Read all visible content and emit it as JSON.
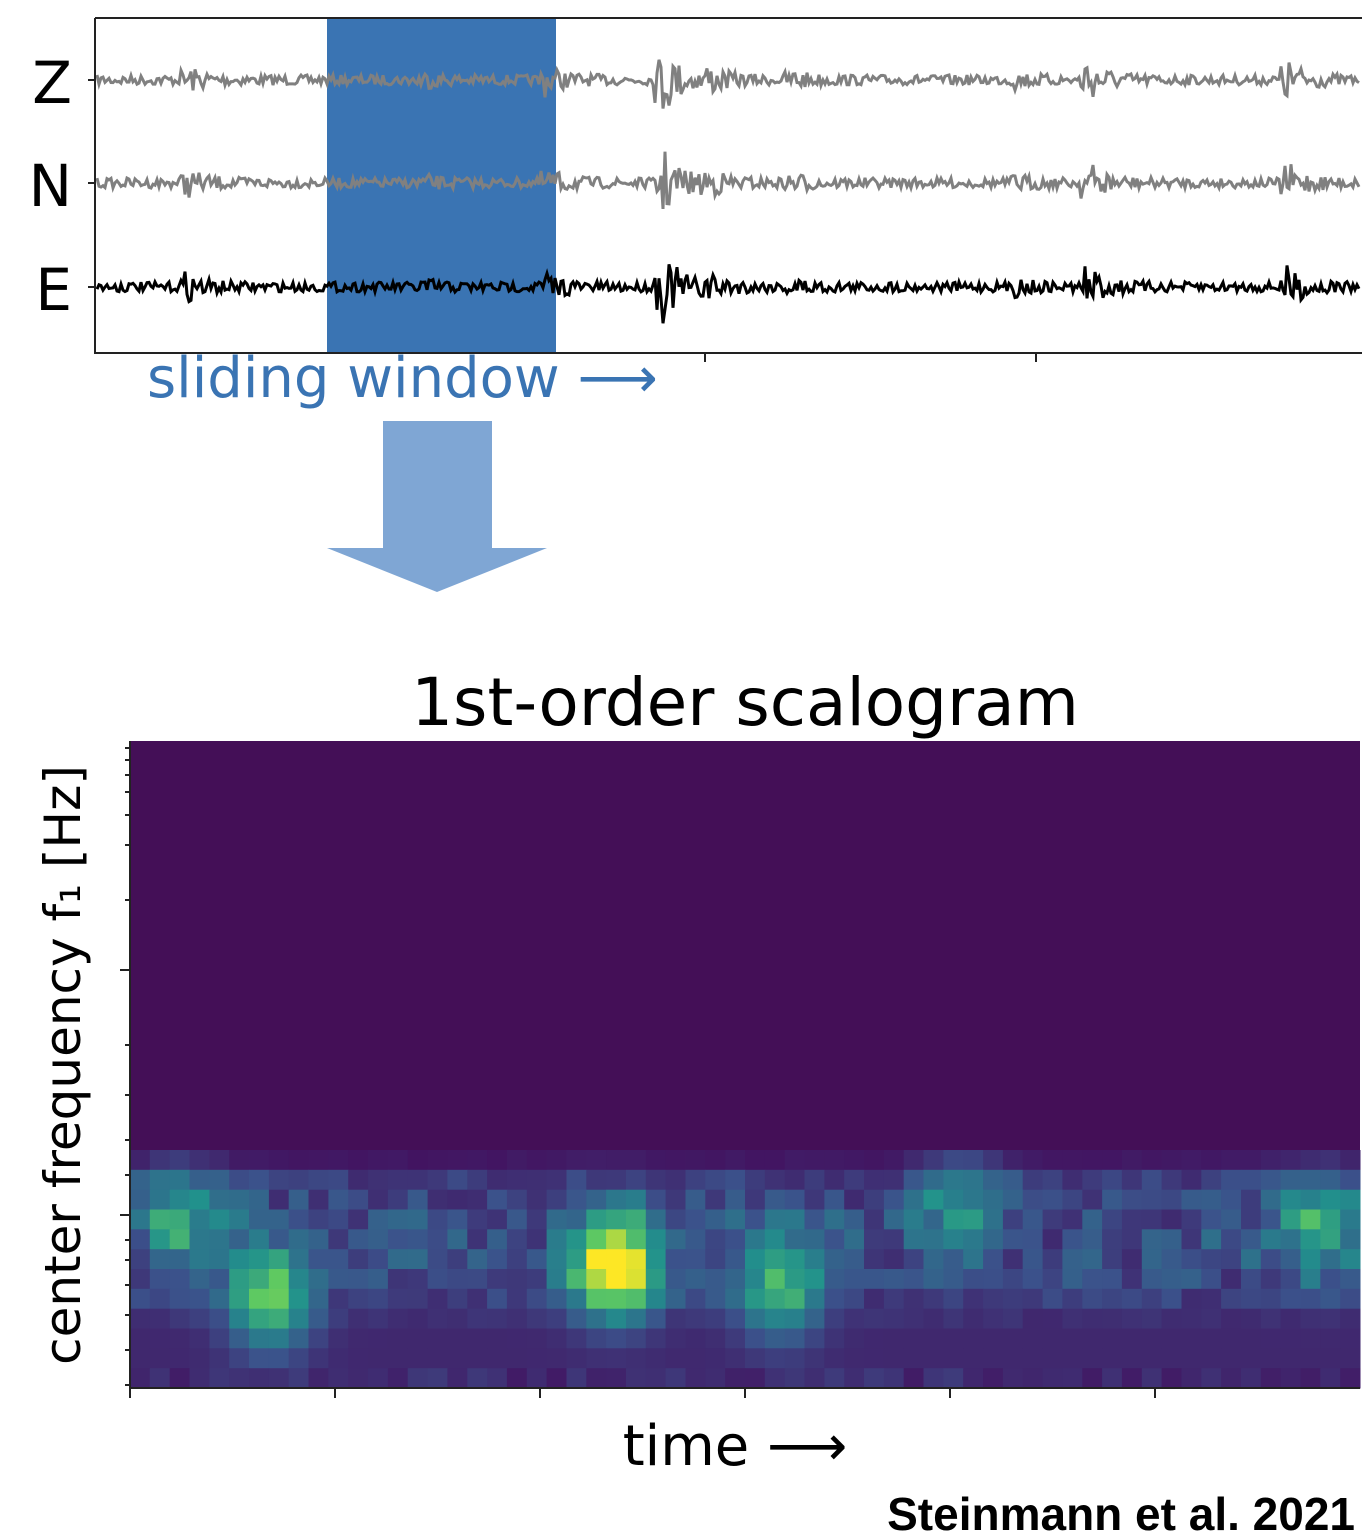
{
  "waveform_panel": {
    "channels": [
      "Z",
      "N",
      "E"
    ],
    "window_label": "sliding window ⟶"
  },
  "scalogram": {
    "title": "1st-order scalogram",
    "y_label": "center frequency f₁ [Hz]",
    "x_label": "time ⟶"
  },
  "citation": "Steinmann et al. 2021"
}
